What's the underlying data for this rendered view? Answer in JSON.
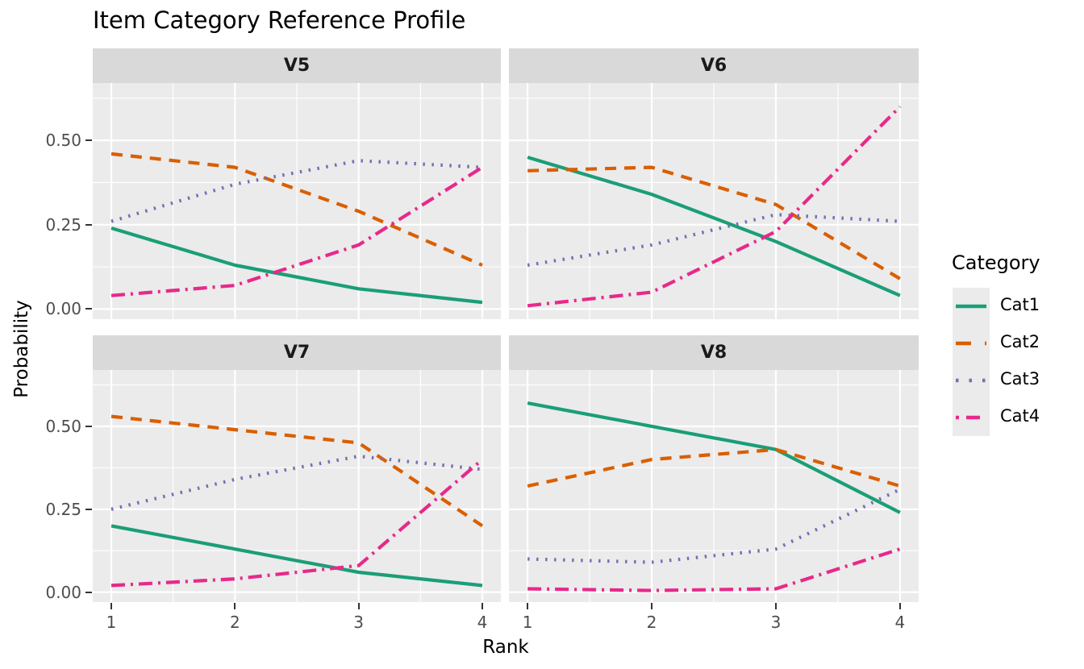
{
  "title": "Item Category Reference Profile",
  "axes": {
    "x_title": "Rank",
    "y_title": "Probability",
    "x_tick_labels": [
      "1",
      "2",
      "3",
      "4"
    ],
    "y_tick_labels": [
      "0.00",
      "0.25",
      "0.50"
    ]
  },
  "legend": {
    "title": "Category",
    "items": [
      {
        "label": "Cat1",
        "color": "#1B9E77",
        "linetype": "solid"
      },
      {
        "label": "Cat2",
        "color": "#D95F02",
        "linetype": "dashed"
      },
      {
        "label": "Cat3",
        "color": "#7570B3",
        "linetype": "dotted"
      },
      {
        "label": "Cat4",
        "color": "#E7298A",
        "linetype": "dotdash"
      }
    ]
  },
  "colors": {
    "panel_background": "#ebebeb",
    "strip_background": "#d9d9d9",
    "gridline": "#ffffff",
    "tick_text": "#4d4d4d",
    "tick_mark": "#333333",
    "cat1": "#1B9E77",
    "cat2": "#D95F02",
    "cat3": "#7570B3",
    "cat4": "#E7298A"
  },
  "chart_data": {
    "type": "line",
    "title": "Item Category Reference Profile",
    "xlabel": "Rank",
    "ylabel": "Probability",
    "legend_title": "Category",
    "legend_position": "right",
    "grid": true,
    "x": [
      1,
      2,
      3,
      4
    ],
    "xlim": [
      0.85,
      4.15
    ],
    "ylim": [
      -0.03,
      0.67
    ],
    "x_major_ticks": [
      1,
      2,
      3,
      4
    ],
    "x_minor_gridlines": [
      1.5,
      2.5,
      3.5
    ],
    "y_major_ticks": [
      0.0,
      0.25,
      0.5
    ],
    "y_minor_gridlines": [
      0.125,
      0.375,
      0.625
    ],
    "series_styles": [
      {
        "name": "Cat1",
        "color": "#1B9E77",
        "linetype": "solid"
      },
      {
        "name": "Cat2",
        "color": "#D95F02",
        "linetype": "dashed"
      },
      {
        "name": "Cat3",
        "color": "#7570B3",
        "linetype": "dotted"
      },
      {
        "name": "Cat4",
        "color": "#E7298A",
        "linetype": "dotdash"
      }
    ],
    "facets": [
      {
        "label": "V5",
        "series": [
          {
            "name": "Cat1",
            "values": [
              0.24,
              0.13,
              0.06,
              0.02
            ]
          },
          {
            "name": "Cat2",
            "values": [
              0.46,
              0.42,
              0.29,
              0.13
            ]
          },
          {
            "name": "Cat3",
            "values": [
              0.26,
              0.37,
              0.44,
              0.42
            ]
          },
          {
            "name": "Cat4",
            "values": [
              0.04,
              0.07,
              0.19,
              0.42
            ]
          }
        ]
      },
      {
        "label": "V6",
        "series": [
          {
            "name": "Cat1",
            "values": [
              0.45,
              0.34,
              0.2,
              0.04
            ]
          },
          {
            "name": "Cat2",
            "values": [
              0.41,
              0.42,
              0.31,
              0.09
            ]
          },
          {
            "name": "Cat3",
            "values": [
              0.13,
              0.19,
              0.28,
              0.26
            ]
          },
          {
            "name": "Cat4",
            "values": [
              0.01,
              0.05,
              0.23,
              0.6
            ]
          }
        ]
      },
      {
        "label": "V7",
        "series": [
          {
            "name": "Cat1",
            "values": [
              0.2,
              0.13,
              0.06,
              0.02
            ]
          },
          {
            "name": "Cat2",
            "values": [
              0.53,
              0.49,
              0.45,
              0.2
            ]
          },
          {
            "name": "Cat3",
            "values": [
              0.25,
              0.34,
              0.41,
              0.37
            ]
          },
          {
            "name": "Cat4",
            "values": [
              0.02,
              0.04,
              0.08,
              0.4
            ]
          }
        ]
      },
      {
        "label": "V8",
        "series": [
          {
            "name": "Cat1",
            "values": [
              0.57,
              0.5,
              0.43,
              0.24
            ]
          },
          {
            "name": "Cat2",
            "values": [
              0.32,
              0.4,
              0.43,
              0.32
            ]
          },
          {
            "name": "Cat3",
            "values": [
              0.1,
              0.09,
              0.13,
              0.31
            ]
          },
          {
            "name": "Cat4",
            "values": [
              0.01,
              0.005,
              0.01,
              0.13
            ]
          }
        ]
      }
    ]
  }
}
